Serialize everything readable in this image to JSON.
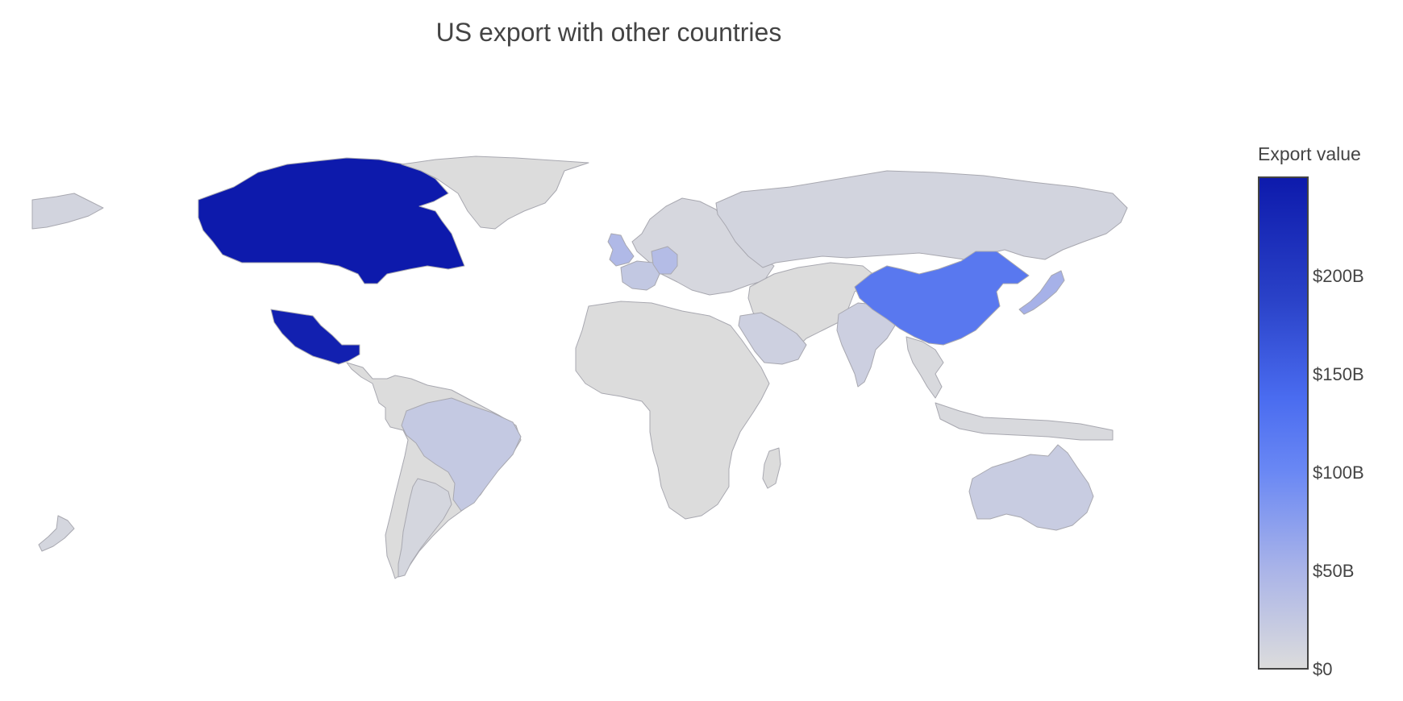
{
  "title": "US export with other countries",
  "legend": {
    "title": "Export value",
    "ticks": [
      {
        "value": 0,
        "label": "$0"
      },
      {
        "value": 50,
        "label": "$50B"
      },
      {
        "value": 100,
        "label": "$100B"
      },
      {
        "value": 150,
        "label": "$150B"
      },
      {
        "value": 200,
        "label": "$200B"
      }
    ],
    "range": [
      0,
      250
    ],
    "colors": [
      "#dcdcdc",
      "#aab4e8",
      "#4a6cf0",
      "#2a42c8",
      "#0d1aac"
    ]
  },
  "default_land_color": "#dcdcdc",
  "countries": [
    {
      "name": "Canada",
      "value": 250
    },
    {
      "name": "Mexico",
      "value": 240
    },
    {
      "name": "China",
      "value": 115
    },
    {
      "name": "Japan",
      "value": 65
    },
    {
      "name": "Germany",
      "value": 50
    },
    {
      "name": "United Kingdom",
      "value": 55
    },
    {
      "name": "France",
      "value": 32
    },
    {
      "name": "Brazil",
      "value": 30
    },
    {
      "name": "Australia",
      "value": 25
    },
    {
      "name": "India",
      "value": 20
    },
    {
      "name": "Saudi Arabia",
      "value": 19
    },
    {
      "name": "Russia",
      "value": 12
    },
    {
      "name": "Argentina",
      "value": 10
    },
    {
      "name": "Alaska",
      "value": 12
    },
    {
      "name": "Greenland",
      "value": 0
    },
    {
      "name": "Africa",
      "value": 0
    },
    {
      "name": "Europe",
      "value": 8
    },
    {
      "name": "Middle East and Central Asia",
      "value": 0
    },
    {
      "name": "Southeast Asia",
      "value": 5
    },
    {
      "name": "South America",
      "value": 0
    },
    {
      "name": "Madagascar",
      "value": 0
    },
    {
      "name": "New Zealand",
      "value": 10
    },
    {
      "name": "Indonesia",
      "value": 5
    }
  ]
}
